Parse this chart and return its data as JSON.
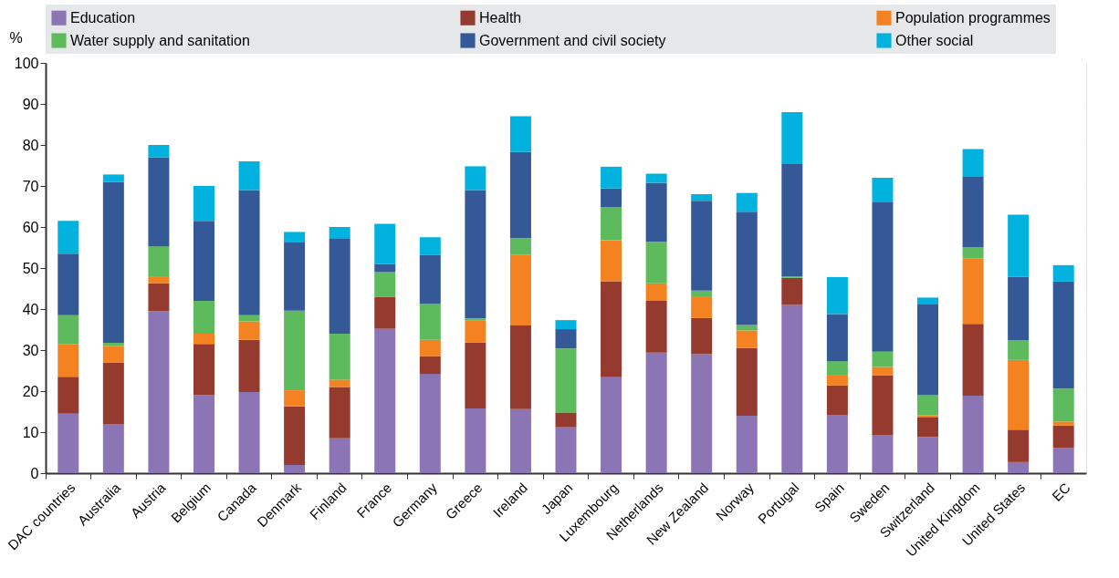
{
  "chart_data": {
    "type": "bar",
    "stacked": true,
    "ylabel": "%",
    "categories": [
      "DAC countries",
      "Australia",
      "Austria",
      "Belgium",
      "Canada",
      "Denmark",
      "Finland",
      "France",
      "Germany",
      "Greece",
      "Ireland",
      "Japan",
      "Luxembourg",
      "Netherlands",
      "New Zealand",
      "Norway",
      "Portugal",
      "Spain",
      "Sweden",
      "Switzerland",
      "United Kingdom",
      "United States",
      "EC"
    ],
    "series": [
      {
        "name": "Education",
        "color": "#8b75b4",
        "values": [
          14.5,
          12,
          39.5,
          19,
          19.8,
          2,
          8.5,
          35.2,
          24.2,
          15.8,
          15.6,
          11.2,
          23.4,
          29.4,
          29,
          14,
          41,
          14.1,
          9.3,
          8.8,
          18.9,
          2.7,
          6.2
        ]
      },
      {
        "name": "Health",
        "color": "#953a2e",
        "values": [
          9,
          15,
          6.8,
          12.5,
          12.7,
          14.3,
          12.5,
          7.8,
          4.3,
          16,
          20.4,
          3.6,
          23.4,
          12.6,
          8.8,
          16.5,
          6.6,
          7.3,
          14.6,
          4.9,
          17.5,
          7.9,
          5.4
        ]
      },
      {
        "name": "Population programmes",
        "color": "#f58220",
        "values": [
          8,
          4,
          1.5,
          2.5,
          4.5,
          3.9,
          1.8,
          0,
          4,
          5.5,
          17.3,
          0,
          10,
          4.3,
          5.3,
          4.3,
          0,
          2.4,
          2,
          0.4,
          16,
          17,
          1
        ]
      },
      {
        "name": "Water supply and sanitation",
        "color": "#5dbb5e",
        "values": [
          7,
          0.8,
          7.5,
          8,
          1.5,
          19.4,
          11.2,
          6,
          8.7,
          0.4,
          4,
          15.6,
          8,
          10.1,
          1.4,
          1.3,
          0.4,
          3.5,
          3.7,
          4.9,
          2.7,
          4.8,
          8
        ]
      },
      {
        "name": "Government and civil society",
        "color": "#355896",
        "values": [
          15,
          39.2,
          21.7,
          19.5,
          30.5,
          16.6,
          23.3,
          2,
          12,
          31.3,
          21,
          4.7,
          4.6,
          14.4,
          21.9,
          27.6,
          27.5,
          11.5,
          36.4,
          22.1,
          17.1,
          15.5,
          26.1
        ]
      },
      {
        "name": "Other social",
        "color": "#00b2dd",
        "values": [
          8,
          1.8,
          3,
          8.5,
          7,
          2.6,
          2.7,
          9.8,
          4.3,
          5.8,
          8.7,
          2.2,
          5.3,
          2.2,
          1.6,
          4.6,
          12.5,
          9,
          6,
          1.7,
          6.8,
          15.1,
          4
        ]
      }
    ],
    "ylim": [
      0,
      100
    ],
    "yticks": [
      0,
      10,
      20,
      30,
      40,
      50,
      60,
      70,
      80,
      90,
      100
    ],
    "grid": true,
    "legend": "top"
  }
}
